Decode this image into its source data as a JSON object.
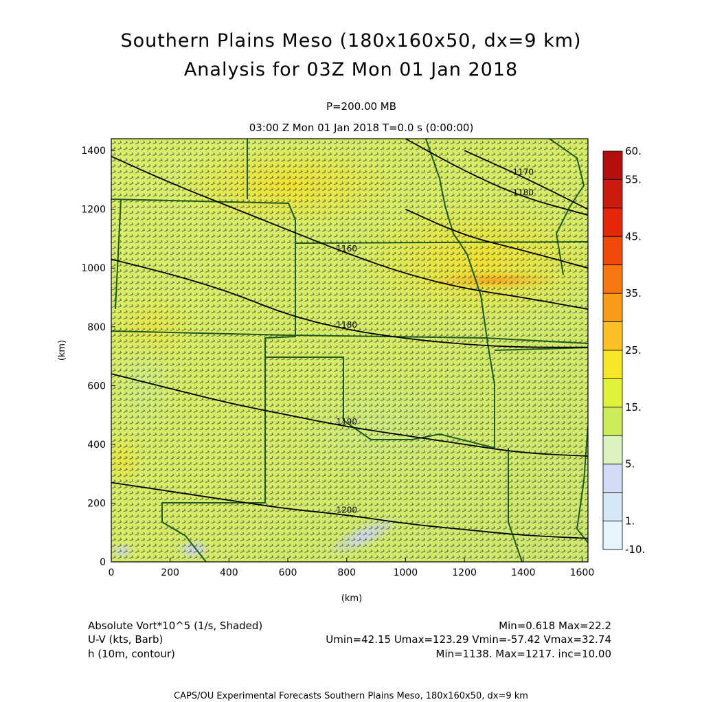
{
  "title": "Southern Plains Meso (180x160x50, dx=9 km)",
  "subtitle": "Analysis for 03Z Mon 01 Jan 2018",
  "level": "P=200.00 MB",
  "time": "03:00 Z Mon 01 Jan 2018    T=0.0 s (0:00:00)",
  "footer": {
    "row1_left": "Absolute Vort*10^5 (1/s, Shaded)",
    "row1_right": "Min=0.618 Max=22.2",
    "row2_left": "U-V (kts, Barb)",
    "row2_right": "Umin=42.15 Umax=123.29 Vmin=-57.42 Vmax=32.74",
    "row3_left": "h (10m, contour)",
    "row3_right": "Min=1138. Max=1217. inc=10.00",
    "credit": "CAPS/OU Experimental Forecasts  Southern Plains Meso, 180x160x50, dx=9 km"
  },
  "chart_data": {
    "type": "heatmap",
    "xlabel": "(km)",
    "ylabel": "(km)",
    "xlim": [
      0,
      1620
    ],
    "ylim": [
      0,
      1440
    ],
    "x_ticks": [
      "0",
      "200",
      "400",
      "600",
      "800",
      "1000",
      "1200",
      "1400",
      "1600"
    ],
    "y_ticks": [
      "0",
      "200",
      "400",
      "600",
      "800",
      "1000",
      "1200",
      "1400"
    ],
    "colorbar": {
      "labels": [
        "60.",
        "55.",
        "45.",
        "35.",
        "25.",
        "15.",
        "5.",
        "1.",
        "-10."
      ],
      "colors": [
        "#b40f0f",
        "#cc1a0c",
        "#e6280a",
        "#f24a0a",
        "#f7760f",
        "#fa9a1a",
        "#fcc024",
        "#f5e628",
        "#e2f23a",
        "#cbec5a",
        "#dcf2c0",
        "#d2dcf5",
        "#d4e8f8",
        "#e6f4fc"
      ]
    },
    "contours": [
      {
        "label": "1160",
        "points": [
          [
            0,
            1380
          ],
          [
            200,
            1290
          ],
          [
            400,
            1210
          ],
          [
            600,
            1130
          ],
          [
            800,
            1050
          ],
          [
            1000,
            980
          ],
          [
            1200,
            930
          ],
          [
            1400,
            900
          ],
          [
            1620,
            860
          ]
        ]
      },
      {
        "label": "1180",
        "points": [
          [
            0,
            1030
          ],
          [
            200,
            980
          ],
          [
            400,
            920
          ],
          [
            600,
            840
          ],
          [
            800,
            790
          ],
          [
            1000,
            760
          ],
          [
            1200,
            740
          ],
          [
            1400,
            730
          ],
          [
            1620,
            730
          ]
        ]
      },
      {
        "label": "1190",
        "points": [
          [
            0,
            640
          ],
          [
            200,
            590
          ],
          [
            400,
            540
          ],
          [
            600,
            500
          ],
          [
            800,
            460
          ],
          [
            1000,
            430
          ],
          [
            1200,
            400
          ],
          [
            1400,
            370
          ],
          [
            1620,
            360
          ]
        ]
      },
      {
        "label": "1200",
        "points": [
          [
            0,
            270
          ],
          [
            200,
            240
          ],
          [
            400,
            210
          ],
          [
            600,
            180
          ],
          [
            800,
            160
          ],
          [
            1000,
            130
          ],
          [
            1200,
            110
          ],
          [
            1400,
            90
          ],
          [
            1620,
            80
          ]
        ]
      },
      {
        "label": "1180",
        "points": [
          [
            1000,
            1440
          ],
          [
            1200,
            1330
          ],
          [
            1400,
            1240
          ],
          [
            1620,
            1180
          ]
        ]
      },
      {
        "label": "1170",
        "points": [
          [
            1200,
            1400
          ],
          [
            1400,
            1310
          ],
          [
            1620,
            1200
          ]
        ]
      },
      {
        "label": "",
        "points": [
          [
            1000,
            1200
          ],
          [
            1200,
            1110
          ],
          [
            1400,
            1060
          ],
          [
            1620,
            1000
          ]
        ]
      }
    ],
    "field_max_location": [
      1200,
      950
    ],
    "field_max_value": 22.2,
    "field_min_value": 0.618
  }
}
